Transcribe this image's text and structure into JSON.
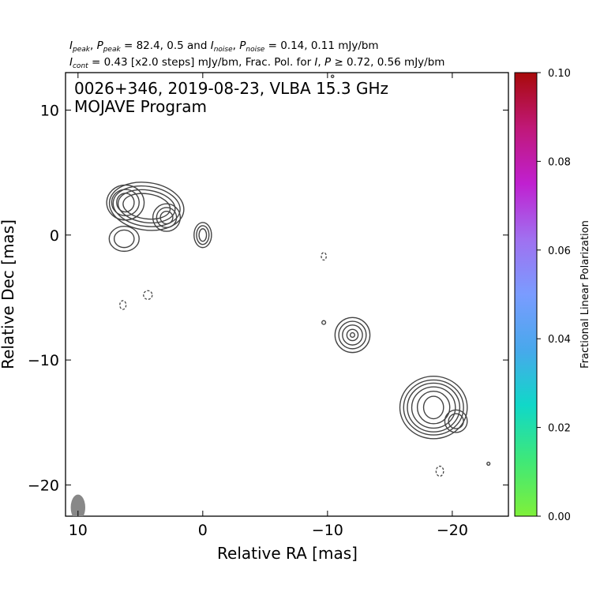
{
  "chart_data": {
    "type": "contour",
    "header_line1": "I_peak, P_peak = 82.4, 0.5 and I_noise, P_noise = 0.14, 0.11 mJy/bm",
    "header_line2": "I_cont = 0.43 [x2.0 steps] mJy/bm, Frac. Pol. for I, P ≥ 0.72, 0.56 mJy/bm",
    "title_line1": "0026+346, 2019-08-23, VLBA 15.3 GHz",
    "title_line2": "MOJAVE Program",
    "xlabel": "Relative RA [mas]",
    "ylabel": "Relative Dec [mas]",
    "xlim": [
      11,
      -24.5
    ],
    "ylim": [
      -22.5,
      13
    ],
    "xticks": [
      10,
      0,
      -10,
      -20
    ],
    "yticks": [
      10,
      0,
      -10,
      -20
    ],
    "xtick_labels": [
      "10",
      "0",
      "−10",
      "−20"
    ],
    "ytick_labels": [
      "10",
      "0",
      "−10",
      "−20"
    ],
    "colorbar": {
      "label": "Fractional Linear Polarization",
      "range": [
        0.0,
        0.1
      ],
      "ticks": [
        0.0,
        0.02,
        0.04,
        0.06,
        0.08,
        0.1
      ],
      "tick_labels": [
        "0.00",
        "0.02",
        "0.04",
        "0.06",
        "0.08",
        "0.10"
      ],
      "colors": [
        "#7ff03a",
        "#3fe878",
        "#10d8c8",
        "#48a8ec",
        "#7a9cff",
        "#a070f0",
        "#c020d0",
        "#c01878",
        "#a80a0a"
      ]
    },
    "contour_color": "#444444",
    "beam": {
      "x": 10,
      "y": -21.8,
      "major_mas": 1.0,
      "minor_mas": 0.55,
      "color": "#888888"
    },
    "components": [
      {
        "name": "core",
        "x": 0.0,
        "y": 0.0,
        "levels": [
          {
            "rx": 0.7,
            "ry": 1.0,
            "rot": 0
          },
          {
            "rx": 0.5,
            "ry": 0.75,
            "rot": 0
          },
          {
            "rx": 0.3,
            "ry": 0.5,
            "rot": 0
          }
        ]
      },
      {
        "name": "northeast-lobe",
        "x": 4.5,
        "y": 2.3,
        "levels": [
          {
            "rx": 3.0,
            "ry": 1.9,
            "rot": 8
          },
          {
            "rx": 2.7,
            "ry": 1.6,
            "rot": 8
          },
          {
            "rx": 2.3,
            "ry": 1.3,
            "rot": 8
          },
          {
            "rx": 1.9,
            "ry": 1.0,
            "rot": 8
          }
        ]
      },
      {
        "name": "northeast-hotspot-a",
        "x": 6.2,
        "y": 2.6,
        "levels": [
          {
            "rx": 1.5,
            "ry": 1.4,
            "rot": 0
          },
          {
            "rx": 1.1,
            "ry": 1.05,
            "rot": 0
          },
          {
            "rx": 0.7,
            "ry": 0.75,
            "rot": 0
          }
        ]
      },
      {
        "name": "northeast-hotspot-b",
        "x": 2.9,
        "y": 1.4,
        "levels": [
          {
            "rx": 1.1,
            "ry": 1.1,
            "rot": 0
          },
          {
            "rx": 0.8,
            "ry": 0.8,
            "rot": 0
          },
          {
            "rx": 0.5,
            "ry": 0.5,
            "rot": 0
          }
        ]
      },
      {
        "name": "northeast-tail",
        "x": 6.3,
        "y": -0.3,
        "levels": [
          {
            "rx": 1.2,
            "ry": 1.0,
            "rot": 0
          },
          {
            "rx": 0.8,
            "ry": 0.7,
            "rot": 0
          }
        ]
      },
      {
        "name": "middle-knot",
        "x": -12.0,
        "y": -8.0,
        "levels": [
          {
            "rx": 1.4,
            "ry": 1.4,
            "rot": 0
          },
          {
            "rx": 1.1,
            "ry": 1.1,
            "rot": 0
          },
          {
            "rx": 0.8,
            "ry": 0.8,
            "rot": 0
          },
          {
            "rx": 0.45,
            "ry": 0.45,
            "rot": 0
          },
          {
            "rx": 0.18,
            "ry": 0.18,
            "rot": 0
          }
        ]
      },
      {
        "name": "southwest-lobe",
        "x": -18.5,
        "y": -13.8,
        "levels": [
          {
            "rx": 2.7,
            "ry": 2.5,
            "rot": 0
          },
          {
            "rx": 2.4,
            "ry": 2.2,
            "rot": 0
          },
          {
            "rx": 2.1,
            "ry": 1.95,
            "rot": 0
          },
          {
            "rx": 1.75,
            "ry": 1.65,
            "rot": 0
          },
          {
            "rx": 1.3,
            "ry": 1.3,
            "rot": 0
          },
          {
            "rx": 0.8,
            "ry": 0.9,
            "rot": 0
          }
        ]
      },
      {
        "name": "southwest-lobe-tail",
        "x": -20.3,
        "y": -14.9,
        "levels": [
          {
            "rx": 0.9,
            "ry": 0.9,
            "rot": 0
          },
          {
            "rx": 0.6,
            "ry": 0.6,
            "rot": 0
          }
        ]
      },
      {
        "name": "faint-blob-1",
        "x": -9.7,
        "y": -7.0,
        "levels": [
          {
            "rx": 0.15,
            "ry": 0.15,
            "rot": 0
          }
        ]
      },
      {
        "name": "faint-blob-2",
        "x": -22.9,
        "y": -18.3,
        "levels": [
          {
            "rx": 0.12,
            "ry": 0.12,
            "rot": 0
          }
        ]
      },
      {
        "name": "faint-blob-3",
        "x": -10.4,
        "y": 12.7,
        "levels": [
          {
            "rx": 0.1,
            "ry": 0.1,
            "rot": 0
          }
        ]
      }
    ],
    "negative_contours": [
      {
        "x": 4.4,
        "y": -4.8,
        "rx": 0.35,
        "ry": 0.35
      },
      {
        "x": 6.4,
        "y": -5.6,
        "rx": 0.25,
        "ry": 0.35
      },
      {
        "x": -9.7,
        "y": -1.7,
        "rx": 0.2,
        "ry": 0.3
      },
      {
        "x": -19.0,
        "y": -18.9,
        "rx": 0.3,
        "ry": 0.4
      }
    ]
  }
}
